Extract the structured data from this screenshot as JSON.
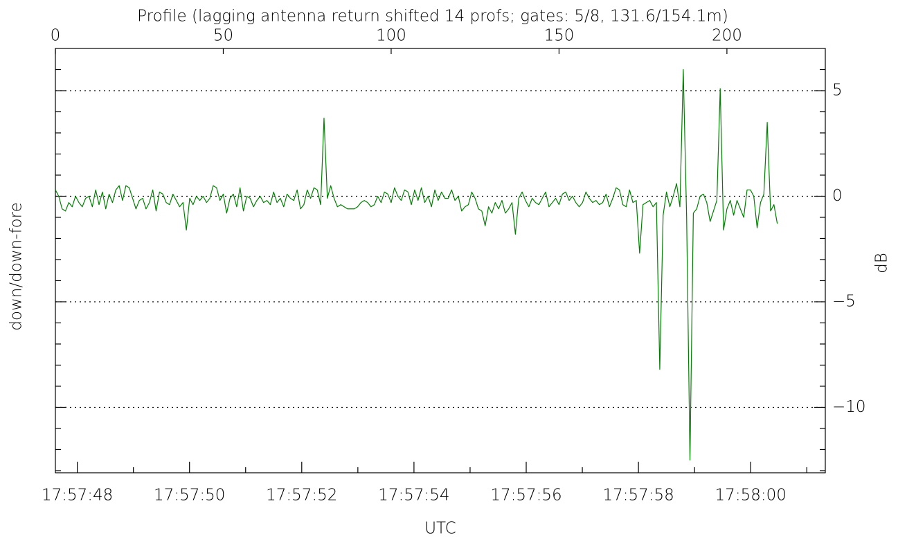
{
  "chart_data": {
    "type": "line",
    "title": "Profile (lagging antenna return shifted 14 profs; gates: 5/8, 131.6/154.1m)",
    "xlabel": "UTC",
    "ylabel": "down/down-fore",
    "y2label": "dB",
    "xlim": [
      0,
      229.3
    ],
    "xticks": [
      0,
      50,
      100,
      150,
      200
    ],
    "x2lim": [
      47.61,
      61.33
    ],
    "x2ticks": [
      {
        "value": 48,
        "label": "17:57:48"
      },
      {
        "value": 50,
        "label": "17:57:50"
      },
      {
        "value": 52,
        "label": "17:57:52"
      },
      {
        "value": 54,
        "label": "17:57:54"
      },
      {
        "value": 56,
        "label": "17:57:56"
      },
      {
        "value": 58,
        "label": "17:57:58"
      },
      {
        "value": 60,
        "label": "17:58:00"
      }
    ],
    "x2minorticks": [
      49,
      51,
      53,
      55,
      57,
      59,
      61
    ],
    "ylim": [
      -13.1,
      7
    ],
    "yticks": [
      5,
      0,
      {
        "value": -5,
        "label": "−5"
      },
      {
        "value": -10,
        "label": "−10"
      }
    ],
    "yminorticks": [
      6,
      4,
      3,
      2,
      1,
      -1,
      -2,
      -3,
      -4,
      -6,
      -7,
      -8,
      -9,
      -11,
      -12,
      -13
    ],
    "grid": true,
    "series": [
      {
        "color": "#008000",
        "x": [
          0,
          1,
          2,
          3,
          4,
          5,
          6,
          7,
          8,
          9,
          10,
          11,
          12,
          13,
          14,
          15,
          16,
          17,
          18,
          19,
          20,
          21,
          22,
          23,
          24,
          25,
          26,
          27,
          28,
          29,
          30,
          31,
          32,
          33,
          34,
          35,
          36,
          37,
          38,
          39,
          40,
          41,
          42,
          43,
          44,
          45,
          46,
          47,
          48,
          49,
          50,
          51,
          52,
          53,
          54,
          55,
          56,
          57,
          58,
          59,
          60,
          61,
          62,
          63,
          64,
          65,
          66,
          67,
          68,
          69,
          70,
          71,
          72,
          73,
          74,
          75,
          76,
          77,
          78,
          79,
          80,
          81,
          82,
          83,
          84,
          85,
          86,
          87,
          88,
          89,
          90,
          91,
          92,
          93,
          94,
          95,
          96,
          97,
          98,
          99,
          100,
          101,
          102,
          103,
          104,
          105,
          106,
          107,
          108,
          109,
          110,
          111,
          112,
          113,
          114,
          115,
          116,
          117,
          118,
          119,
          120,
          121,
          122,
          123,
          124,
          125,
          126,
          127,
          128,
          129,
          130,
          131,
          132,
          133,
          134,
          135,
          136,
          137,
          138,
          139,
          140,
          141,
          142,
          143,
          144,
          145,
          146,
          147,
          148,
          149,
          150,
          151,
          152,
          153,
          154,
          155,
          156,
          157,
          158,
          159,
          160,
          161,
          162,
          163,
          164,
          165,
          166,
          167,
          168,
          169,
          170,
          171,
          172,
          173,
          174,
          175,
          176,
          177,
          178,
          179,
          180,
          181,
          182,
          183,
          184,
          185,
          186,
          187,
          188,
          189,
          190,
          191,
          192,
          193,
          194,
          195,
          196,
          197,
          198,
          199,
          200,
          201,
          202,
          203,
          204,
          205,
          206,
          207,
          208,
          209,
          210,
          211,
          212,
          213,
          214,
          215
        ],
        "values": [
          0.3,
          0.0,
          -0.6,
          -0.7,
          -0.3,
          -0.5,
          0.0,
          -0.3,
          -0.5,
          -0.1,
          0.0,
          -0.5,
          0.3,
          -0.4,
          0.2,
          -0.6,
          0.1,
          -0.3,
          0.3,
          0.5,
          -0.2,
          0.5,
          0.4,
          -0.1,
          -0.6,
          -0.2,
          -0.1,
          -0.6,
          -0.3,
          0.3,
          -0.7,
          0.2,
          0.1,
          -0.3,
          -0.4,
          0.1,
          -0.2,
          -0.5,
          -0.3,
          -1.6,
          -0.1,
          -0.4,
          0.0,
          -0.2,
          0.0,
          -0.3,
          -0.1,
          0.5,
          0.4,
          -0.2,
          0.1,
          -0.8,
          -0.1,
          0.1,
          -0.5,
          0.4,
          -0.7,
          0.0,
          -0.1,
          -0.5,
          -0.2,
          0.0,
          -0.3,
          -0.2,
          -0.4,
          0.2,
          -0.3,
          -0.1,
          -0.5,
          0.1,
          -0.1,
          -0.2,
          0.3,
          -0.6,
          -0.4,
          0.3,
          -0.1,
          0.4,
          0.3,
          -0.4,
          3.7,
          -0.1,
          0.5,
          -0.1,
          -0.5,
          -0.4,
          -0.5,
          -0.6,
          -0.6,
          -0.6,
          -0.5,
          -0.3,
          -0.2,
          -0.3,
          -0.5,
          -0.4,
          0.0,
          -0.3,
          0.2,
          0.1,
          -0.3,
          0.4,
          0.0,
          -0.2,
          0.3,
          0.2,
          -0.4,
          0.3,
          -0.2,
          0.4,
          -0.3,
          0.0,
          -0.5,
          0.3,
          -0.2,
          0.2,
          -0.1,
          -0.1,
          0.3,
          -0.2,
          0.0,
          -0.7,
          -0.5,
          -0.4,
          0.2,
          -0.1,
          -0.6,
          -0.7,
          -1.4,
          -0.5,
          -0.8,
          -0.3,
          -0.6,
          -0.2,
          -0.8,
          -0.6,
          -0.3,
          -1.8,
          -0.1,
          0.2,
          -0.2,
          -0.5,
          -0.1,
          -0.3,
          -0.4,
          -0.1,
          0.2,
          -0.5,
          -0.3,
          -0.1,
          -0.4,
          0.1,
          0.2,
          -0.2,
          0.0,
          -0.3,
          -0.5,
          -0.3,
          0.2,
          -0.1,
          -0.3,
          -0.2,
          -0.4,
          -0.3,
          0.1,
          -0.5,
          -0.1,
          0.4,
          0.3,
          -0.4,
          -0.5,
          0.3,
          -0.3,
          -0.2,
          -2.7,
          -0.4,
          -0.3,
          -0.2,
          -0.5,
          -0.3,
          -8.2,
          -0.9,
          0.2,
          -0.5,
          0.0,
          0.6,
          -0.5,
          6.0,
          -1.0,
          -12.5,
          -0.8,
          -0.6,
          0.0,
          0.1,
          -0.3,
          -1.2,
          -0.7,
          -0.2,
          5.1,
          -1.6,
          -0.6,
          -0.2,
          -0.9,
          -0.2,
          -0.6,
          -1.0,
          0.3,
          0.3,
          0.0,
          -1.5,
          -0.3,
          0.1,
          3.5,
          -0.7,
          -0.4,
          -1.3
        ]
      }
    ]
  }
}
